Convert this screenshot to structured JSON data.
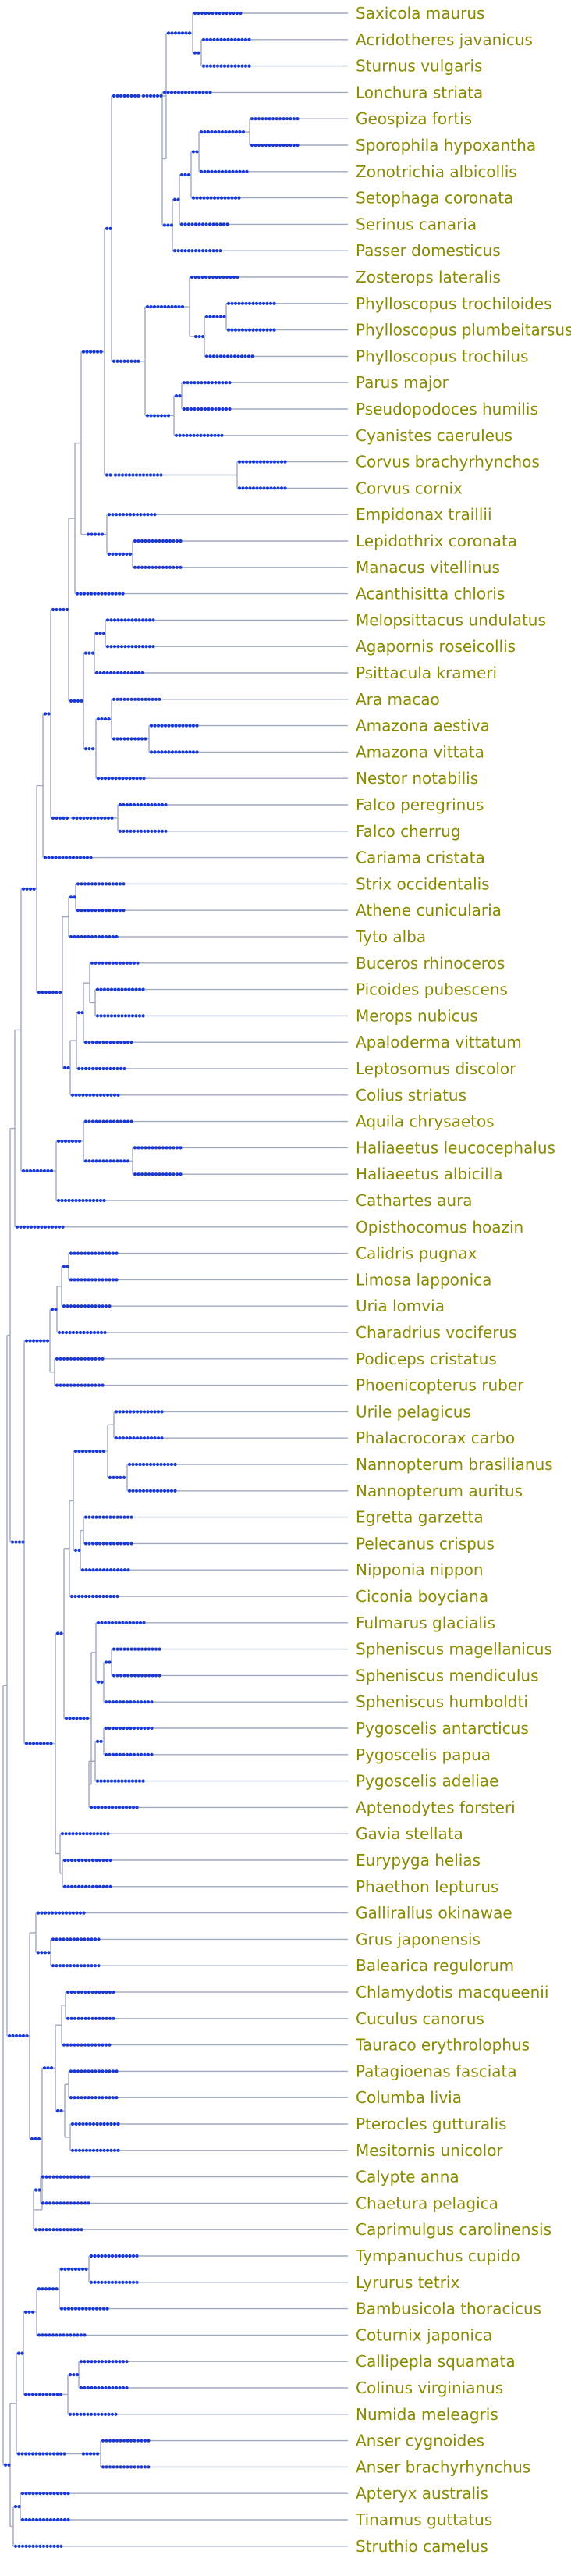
{
  "colors": {
    "branch": "#a0a8c0",
    "node": "#1a3ad8",
    "label": "#8a8a00"
  },
  "taxa": [
    "Saxicola maurus",
    "Acridotheres javanicus",
    "Sturnus vulgaris",
    "Lonchura striata",
    "Geospiza fortis",
    "Sporophila hypoxantha",
    "Zonotrichia albicollis",
    "Setophaga coronata",
    "Serinus canaria",
    "Passer domesticus",
    "Zosterops lateralis",
    "Phylloscopus trochiloides",
    "Phylloscopus plumbeitarsus",
    "Phylloscopus trochilus",
    "Parus major",
    "Pseudopodoces humilis",
    "Cyanistes caeruleus",
    "Corvus brachyrhynchos",
    "Corvus cornix",
    "Empidonax traillii",
    "Lepidothrix coronata",
    "Manacus vitellinus",
    "Acanthisitta chloris",
    "Melopsittacus undulatus",
    "Agapornis roseicollis",
    "Psittacula krameri",
    "Ara macao",
    "Amazona aestiva",
    "Amazona vittata",
    "Nestor notabilis",
    "Falco peregrinus",
    "Falco cherrug",
    "Cariama cristata",
    "Strix occidentalis",
    "Athene cunicularia",
    "Tyto alba",
    "Buceros rhinoceros",
    "Picoides pubescens",
    "Merops nubicus",
    "Apaloderma vittatum",
    "Leptosomus discolor",
    "Colius striatus",
    "Aquila chrysaetos",
    "Haliaeetus leucocephalus",
    "Haliaeetus albicilla",
    "Cathartes aura",
    "Opisthocomus hoazin",
    "Calidris pugnax",
    "Limosa lapponica",
    "Uria lomvia",
    "Charadrius vociferus",
    "Podiceps cristatus",
    "Phoenicopterus ruber",
    "Urile pelagicus",
    "Phalacrocorax carbo",
    "Nannopterum brasilianus",
    "Nannopterum auritus",
    "Egretta garzetta",
    "Pelecanus crispus",
    "Nipponia nippon",
    "Ciconia boyciana",
    "Fulmarus glacialis",
    "Spheniscus magellanicus",
    "Spheniscus mendiculus",
    "Spheniscus humboldti",
    "Pygoscelis antarcticus",
    "Pygoscelis papua",
    "Pygoscelis adeliae",
    "Aptenodytes forsteri",
    "Gavia stellata",
    "Eurypyga helias",
    "Phaethon lepturus",
    "Gallirallus okinawae",
    "Grus japonensis",
    "Balearica regulorum",
    "Chlamydotis macqueenii",
    "Cuculus canorus",
    "Tauraco erythrolophus",
    "Patagioenas fasciata",
    "Columba livia",
    "Pterocles gutturalis",
    "Mesitornis unicolor",
    "Calypte anna",
    "Chaetura pelagica",
    "Caprimulgus carolinensis",
    "Tympanuchus cupido",
    "Lyrurus tetrix",
    "Bambusicola thoracicus",
    "Coturnix japonica",
    "Callipepla squamata",
    "Colinus virginianus",
    "Numida meleagris",
    "Anser cygnoides",
    "Anser brachyrhynchus",
    "Apteryx australis",
    "Tinamus guttatus",
    "Struthio camelus"
  ]
}
